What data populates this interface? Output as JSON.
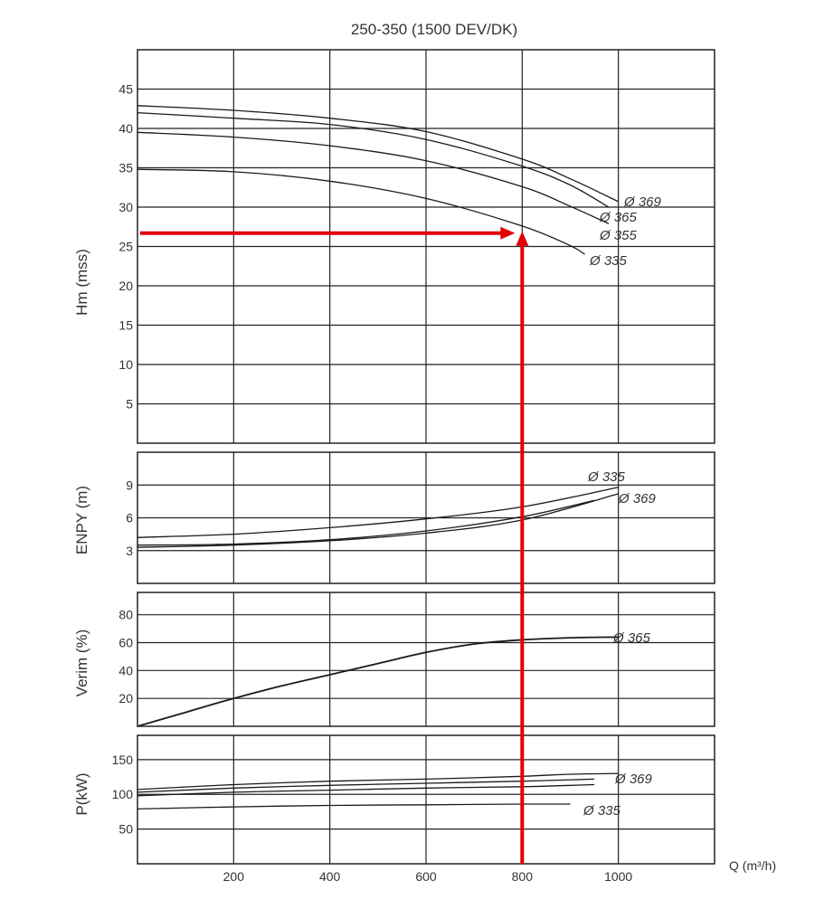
{
  "title": "250-350 (1500 DEV/DK)",
  "chart_data": [
    {
      "type": "line",
      "id": "head",
      "ylabel": "Hm (mss)",
      "ylim": [
        0,
        50
      ],
      "yticks": [
        5,
        10,
        15,
        20,
        25,
        30,
        35,
        40,
        45
      ],
      "series": [
        {
          "name": "Ø 369",
          "x": [
            0,
            200,
            400,
            600,
            800,
            900,
            1000
          ],
          "y": [
            42.9,
            42.3,
            41.3,
            39.6,
            36.1,
            33.6,
            30.7
          ]
        },
        {
          "name": "Ø 365",
          "x": [
            0,
            200,
            400,
            600,
            800,
            900,
            980
          ],
          "y": [
            42.0,
            41.3,
            40.5,
            38.6,
            35.2,
            32.8,
            30.0
          ]
        },
        {
          "name": "Ø 355",
          "x": [
            0,
            200,
            400,
            600,
            800,
            900,
            980
          ],
          "y": [
            39.5,
            38.9,
            37.8,
            35.9,
            32.6,
            30.1,
            27.9
          ]
        },
        {
          "name": "Ø 335",
          "x": [
            0,
            200,
            400,
            600,
            800,
            900,
            930
          ],
          "y": [
            34.8,
            34.5,
            33.3,
            31.1,
            27.6,
            25.1,
            24.0
          ]
        }
      ]
    },
    {
      "type": "line",
      "id": "npsh",
      "ylabel": "ENPY (m)",
      "ylim": [
        0,
        12
      ],
      "yticks": [
        3,
        6,
        9
      ],
      "series": [
        {
          "name": "Ø 335",
          "x": [
            0,
            200,
            400,
            600,
            800,
            1000
          ],
          "y": [
            4.2,
            4.5,
            5.1,
            5.9,
            7.0,
            8.8
          ]
        },
        {
          "name": "",
          "x": [
            0,
            200,
            400,
            600,
            800,
            950
          ],
          "y": [
            3.5,
            3.6,
            4.0,
            4.8,
            6.1,
            7.6
          ]
        },
        {
          "name": "Ø 369",
          "x": [
            0,
            200,
            400,
            600,
            800,
            1000
          ],
          "y": [
            3.3,
            3.5,
            3.9,
            4.6,
            5.8,
            8.2
          ]
        }
      ]
    },
    {
      "type": "line",
      "id": "efficiency",
      "ylabel": "Verim (%)",
      "ylim": [
        0,
        96
      ],
      "yticks": [
        20,
        40,
        60,
        80
      ],
      "series": [
        {
          "name": "Ø 365",
          "x": [
            0,
            100,
            200,
            300,
            400,
            500,
            600,
            700,
            800,
            900,
            1000
          ],
          "y": [
            0,
            10,
            20,
            29,
            37,
            45,
            53,
            59,
            62,
            63.5,
            64
          ]
        }
      ]
    },
    {
      "type": "line",
      "id": "power",
      "ylabel": "P(kW)",
      "ylim": [
        0,
        185
      ],
      "yticks": [
        50,
        100,
        150
      ],
      "series": [
        {
          "name": "Ø 369",
          "x": [
            0,
            200,
            400,
            600,
            800,
            900,
            1000
          ],
          "y": [
            107,
            114,
            119,
            122,
            126,
            129,
            130
          ]
        },
        {
          "name": "",
          "x": [
            0,
            200,
            400,
            600,
            800,
            950
          ],
          "y": [
            103,
            109,
            113,
            116,
            119,
            122
          ]
        },
        {
          "name": "",
          "x": [
            0,
            200,
            400,
            600,
            800,
            950
          ],
          "y": [
            98,
            103,
            106,
            109,
            111,
            114
          ]
        },
        {
          "name": "Ø 335",
          "x": [
            0,
            200,
            400,
            600,
            800,
            900
          ],
          "y": [
            79,
            82,
            84,
            85,
            86,
            86
          ]
        }
      ]
    }
  ],
  "x_axis": {
    "label": "Q (m³/h)",
    "ticks": [
      200,
      400,
      600,
      800,
      1000
    ],
    "xlim": [
      0,
      1200
    ]
  },
  "annotation": {
    "operating_point": {
      "q": 800,
      "h": 26.7
    },
    "color": "#e00000"
  },
  "colors": {
    "line": "#1a1a1a",
    "grid": "#222222",
    "highlight": "#e00000"
  }
}
